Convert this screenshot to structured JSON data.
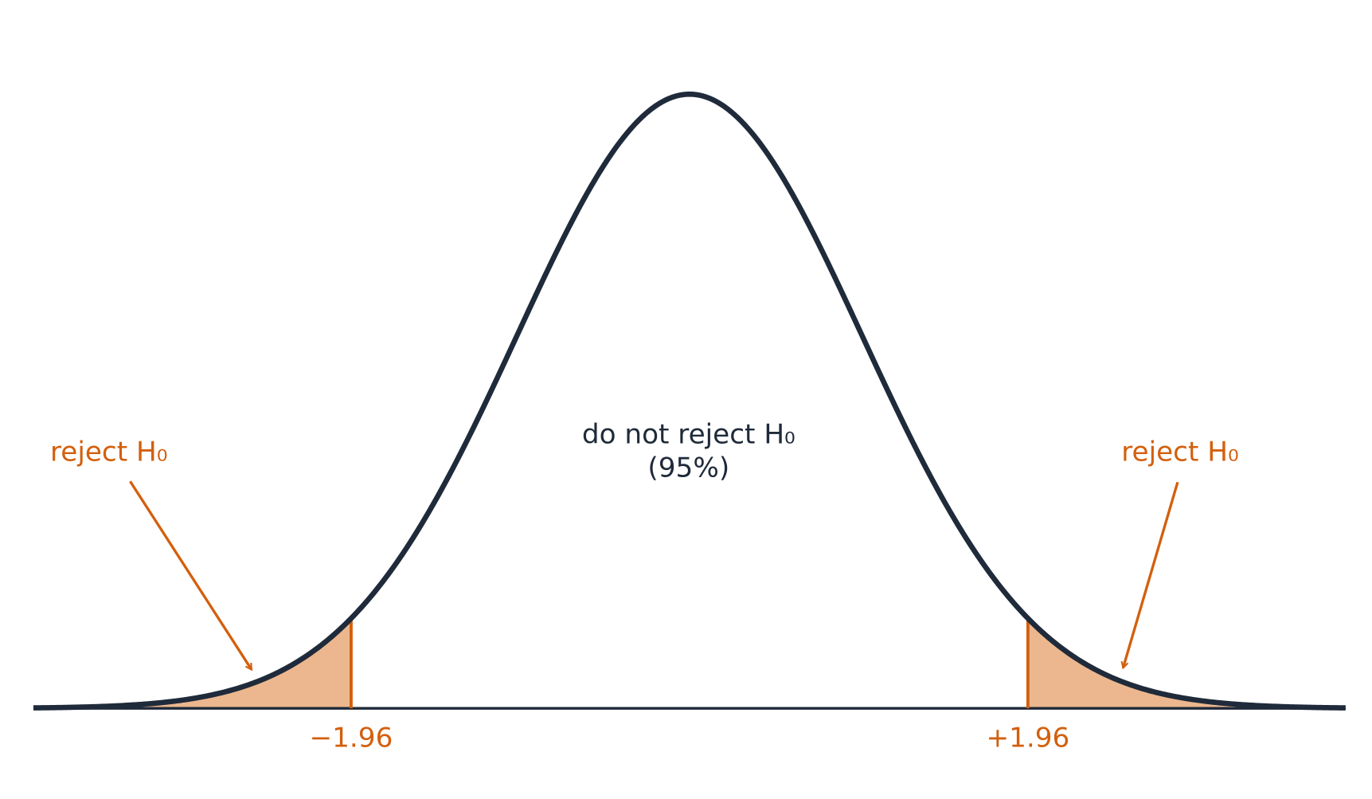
{
  "chart_data": {
    "type": "normal",
    "xlim": [
      -3.8,
      3.8
    ],
    "critical_values": [
      {
        "value": -1.96,
        "label": "−1.96"
      },
      {
        "value": 1.96,
        "label": "+1.96"
      }
    ],
    "center_label": "do not reject H₀",
    "center_sublabel": "(95%)",
    "tail_labels": [
      "reject H₀",
      "reject H₀"
    ],
    "curve_color": "#1f2a3a",
    "region_color": "#d35f0d",
    "region_fill": "#ecb78e"
  }
}
